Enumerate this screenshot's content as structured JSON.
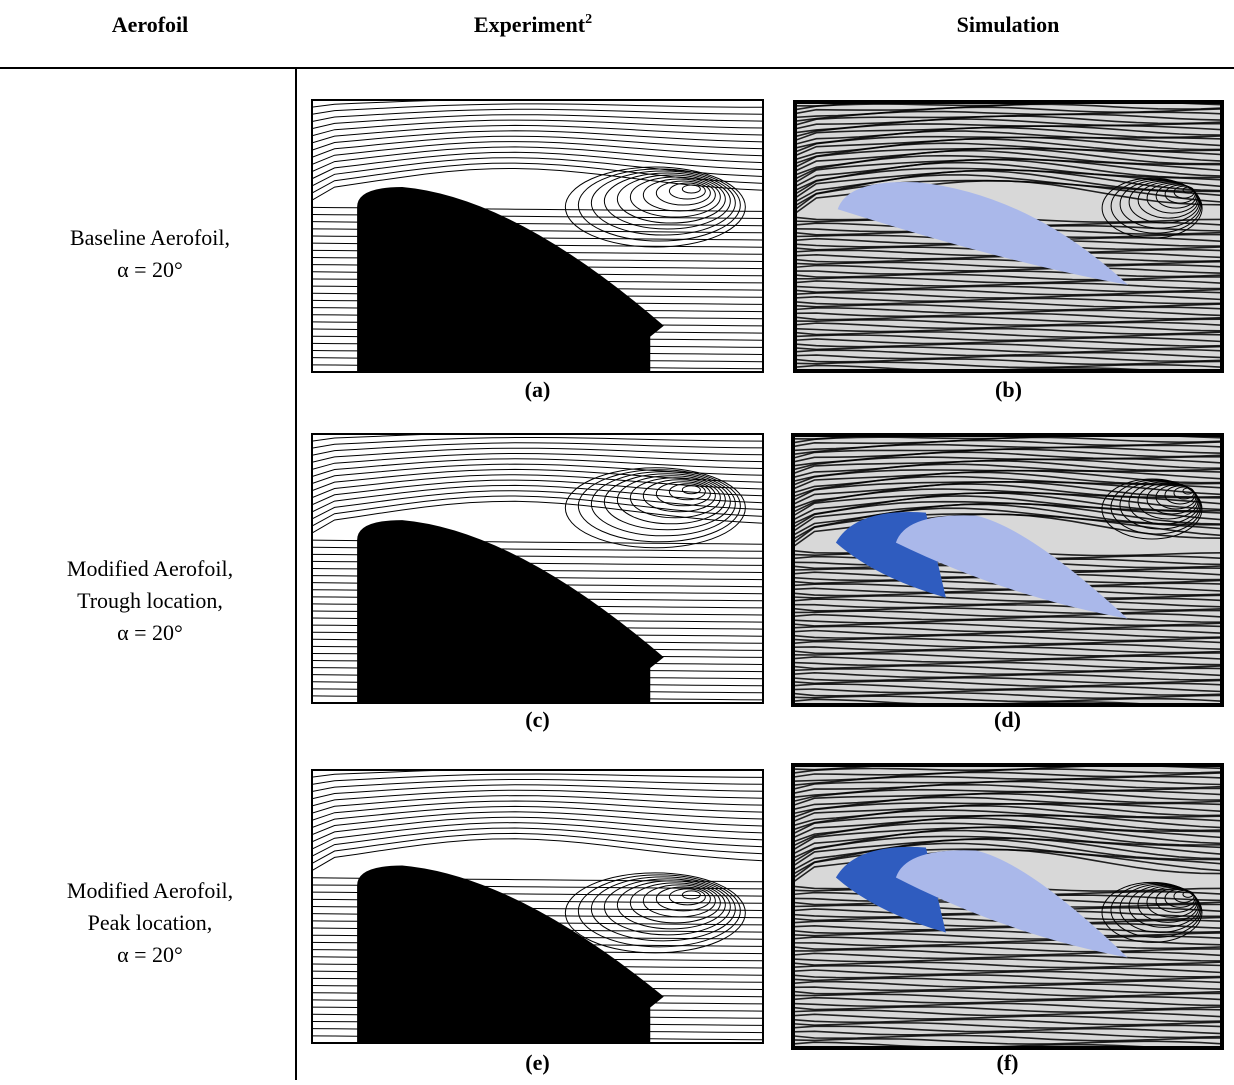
{
  "header": {
    "aerofoil": "Aerofoil",
    "experiment": "Experiment",
    "experiment_sup": "2",
    "simulation": "Simulation"
  },
  "rows": [
    {
      "label_lines": [
        "Baseline Aerofoil,",
        "α = 20°"
      ],
      "experiment_caption": "(a)",
      "simulation_caption": "(b)"
    },
    {
      "label_lines": [
        "Modified Aerofoil,",
        "Trough location,",
        "α = 20°"
      ],
      "experiment_caption": "(c)",
      "simulation_caption": "(d)"
    },
    {
      "label_lines": [
        "Modified Aerofoil,",
        "Peak location,",
        "α = 20°"
      ],
      "experiment_caption": "(e)",
      "simulation_caption": "(f)"
    }
  ]
}
